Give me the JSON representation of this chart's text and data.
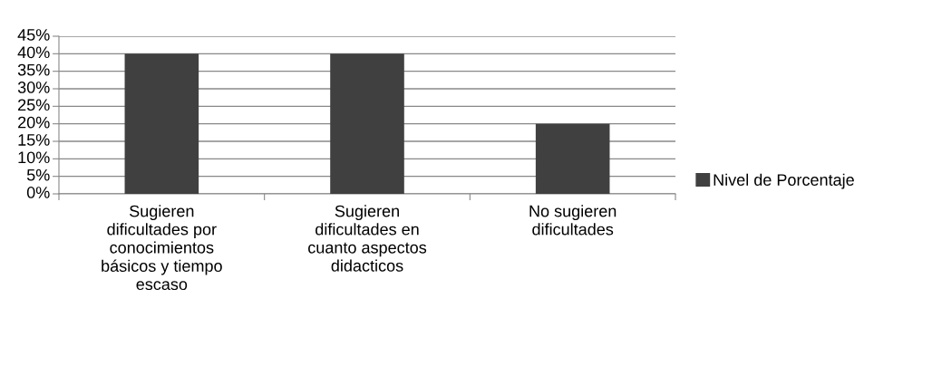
{
  "chart_data": {
    "type": "bar",
    "categories": [
      "Sugieren\ndificultades por\nconocimientos\nbásicos y tiempo\nescaso",
      "Sugieren\ndificultades en\ncuanto aspectos\ndidacticos",
      "No sugieren\ndificultades"
    ],
    "series": [
      {
        "name": "Nivel de Porcentaje",
        "color": "#404040",
        "values": [
          40,
          40,
          20
        ]
      }
    ],
    "ylim": [
      0,
      45
    ],
    "yticks": [
      {
        "value": 0,
        "label": "0%"
      },
      {
        "value": 5,
        "label": "5%"
      },
      {
        "value": 10,
        "label": "10%"
      },
      {
        "value": 15,
        "label": "15%"
      },
      {
        "value": 20,
        "label": "20%"
      },
      {
        "value": 25,
        "label": "25%"
      },
      {
        "value": 30,
        "label": "30%"
      },
      {
        "value": 35,
        "label": "35%"
      },
      {
        "value": 40,
        "label": "40%"
      },
      {
        "value": 45,
        "label": "45%"
      }
    ],
    "grid": "y",
    "legend": "right"
  }
}
